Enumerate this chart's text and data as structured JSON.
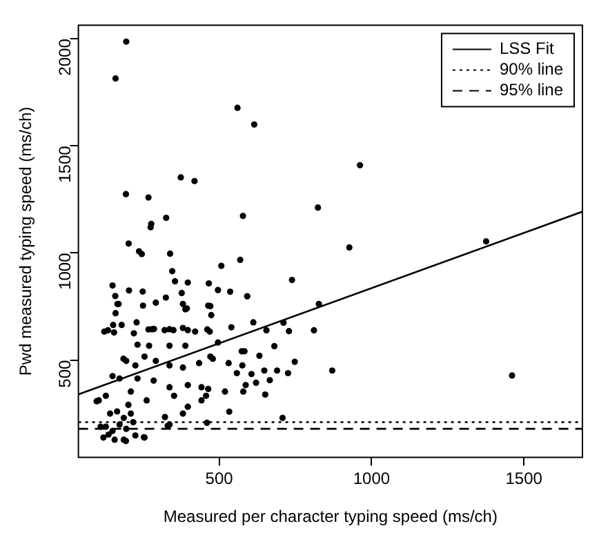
{
  "chart_data": {
    "type": "scatter",
    "xlabel": "Measured per character typing speed (ms/ch)",
    "ylabel": "Pwd measured typing speed (ms/ch)",
    "xlim": [
      38,
      1692
    ],
    "ylim": [
      46,
      2064
    ],
    "xticks": [
      500,
      1000,
      1500
    ],
    "yticks": [
      500,
      1000,
      1500,
      2000
    ],
    "grid": false,
    "legend": "top right",
    "marker": "circle",
    "series": [
      {
        "color": "#000000",
        "x": [
          195,
          160,
          560,
          615,
          962,
          374,
          419,
          194,
          268,
          824,
          326,
          578,
          277,
          275,
          203,
          1376,
          927,
          237,
          246,
          339,
          507,
          569,
          346,
          739,
          150,
          355,
          397,
          466,
          159,
          204,
          249,
          496,
          536,
          377,
          592,
          325,
          166,
          292,
          250,
          381,
          464,
          827,
          160,
          389,
          474,
          123,
          152,
          180,
          155,
          229,
          220,
          268,
          286,
          321,
          350,
          397,
          421,
          461,
          612,
          711,
          729,
          811,
          655,
          748,
          871,
          1461,
          540,
          469,
          496,
          681,
          574,
          583,
          632,
          479,
          531,
          576,
          558,
          606,
          648,
          690,
          726,
          666,
          621,
          587,
          519,
          579,
          651,
          464,
          457,
          533,
          708,
          460,
          170,
          394,
          471,
          135,
          280,
          337,
          381,
          232,
          270,
          337,
          389,
          186,
          195,
          225,
          255,
          292,
          337,
          381,
          434,
          471,
          150,
          173,
          232,
          285,
          337,
          397,
          442,
          105,
          128,
          210,
          202,
          262,
          352,
          397,
          442,
          142,
          165,
          187,
          210,
          128,
          150,
          173,
          195,
          218,
          120,
          157,
          187,
          225,
          255,
          337,
          381,
          111,
          137,
          194,
          253,
          322,
          331,
          98
        ],
        "values": [
          1987,
          1815,
          1678,
          1600,
          1410,
          1353,
          1336,
          1275,
          1259,
          1212,
          1164,
          1173,
          1136,
          1120,
          1044,
          1054,
          1026,
          1008,
          995,
          997,
          940,
          968,
          915,
          874,
          848,
          868,
          862,
          858,
          799,
          825,
          820,
          827,
          819,
          813,
          798,
          792,
          762,
          768,
          754,
          762,
          754,
          762,
          719,
          737,
          710,
          633,
          664,
          664,
          629,
          676,
          625,
          643,
          645,
          640,
          640,
          640,
          633,
          643,
          676,
          674,
          635,
          639,
          639,
          492,
          451,
          428,
          653,
          633,
          582,
          565,
          541,
          541,
          520,
          506,
          486,
          475,
          439,
          435,
          451,
          451,
          439,
          406,
          394,
          383,
          353,
          353,
          339,
          365,
          333,
          259,
          230,
          207,
          762,
          741,
          752,
          639,
          644,
          644,
          650,
          572,
          567,
          567,
          567,
          506,
          496,
          475,
          516,
          496,
          475,
          465,
          486,
          516,
          425,
          414,
          414,
          404,
          373,
          383,
          373,
          312,
          333,
          353,
          291,
          312,
          333,
          282,
          312,
          250,
          260,
          230,
          250,
          189,
          169,
          199,
          179,
          210,
          138,
          128,
          128,
          148,
          138,
          199,
          250,
          189,
          152,
          122,
          140,
          234,
          193,
          308
        ]
      },
      {
        "type": "line",
        "name": "LSS Fit",
        "color": "#000000",
        "x": [
          38,
          1692
        ],
        "values": [
          340,
          1193
        ],
        "line_style": "solid",
        "marker": "none"
      }
    ],
    "ref_lines": [
      {
        "axis": "y",
        "value": 210,
        "label": "90% line",
        "color": "#000000",
        "line_style": "dotted"
      },
      {
        "axis": "y",
        "value": 179,
        "label": "95% line",
        "color": "#000000",
        "line_style": "dashed"
      }
    ]
  }
}
